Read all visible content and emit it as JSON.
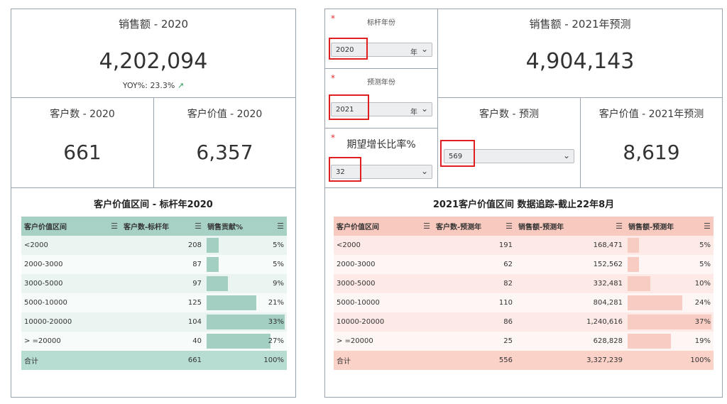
{
  "left": {
    "kpi_sales": {
      "title": "销售额 - 2020",
      "value": "4,202,094",
      "yoy_label": "YOY%:",
      "yoy_value": "23.3%",
      "trend_icon": "trend-up-icon"
    },
    "kpi_customers": {
      "title": "客户数 - 2020",
      "value": "661"
    },
    "kpi_value": {
      "title": "客户价值 - 2020",
      "value": "6,357"
    },
    "table": {
      "title": "客户价值区间 - 标杆年2020",
      "columns": [
        "客户价值区间",
        "客户数-标杆年",
        "销售贡献%"
      ],
      "rows": [
        {
          "range": "<2000",
          "count": "208",
          "share": "5%",
          "share_pct": 5
        },
        {
          "range": "2000-3000",
          "count": "87",
          "share": "5%",
          "share_pct": 5
        },
        {
          "range": "3000-5000",
          "count": "97",
          "share": "9%",
          "share_pct": 9
        },
        {
          "range": "5000-10000",
          "count": "125",
          "share": "21%",
          "share_pct": 21
        },
        {
          "range": "10000-20000",
          "count": "104",
          "share": "33%",
          "share_pct": 33
        },
        {
          "range": "> =20000",
          "count": "40",
          "share": "27%",
          "share_pct": 27
        }
      ],
      "total": {
        "label": "合计",
        "count": "661",
        "share": "100%"
      }
    }
  },
  "controls": {
    "benchmark_year": {
      "label": "标杆年份",
      "value": "2020",
      "unit": "年"
    },
    "forecast_year": {
      "label": "预测年份",
      "value": "2021",
      "unit": "年"
    },
    "growth_rate": {
      "label": "期望增长比率%",
      "value": "32"
    }
  },
  "right": {
    "kpi_sales": {
      "title": "销售额 - 2021年预测",
      "value": "4,904,143"
    },
    "kpi_customers": {
      "title": "客户数 - 预测",
      "input_value": "569"
    },
    "kpi_value": {
      "title": "客户价值 - 2021年预测",
      "value": "8,619"
    },
    "table": {
      "title": "2021客户价值区间  数据追踪-截止22年8月",
      "columns": [
        "客户价值区间",
        "客户数-预测年",
        "销售额-预测年",
        "销售额-预测年"
      ],
      "rows": [
        {
          "range": "<2000",
          "count": "191",
          "sales": "168,471",
          "share": "5%",
          "share_pct": 5
        },
        {
          "range": "2000-3000",
          "count": "62",
          "sales": "152,562",
          "share": "5%",
          "share_pct": 5
        },
        {
          "range": "3000-5000",
          "count": "82",
          "sales": "332,481",
          "share": "10%",
          "share_pct": 10
        },
        {
          "range": "5000-10000",
          "count": "110",
          "sales": "804,281",
          "share": "24%",
          "share_pct": 24
        },
        {
          "range": "10000-20000",
          "count": "86",
          "sales": "1,240,616",
          "share": "37%",
          "share_pct": 37
        },
        {
          "range": "> =20000",
          "count": "25",
          "sales": "628,828",
          "share": "19%",
          "share_pct": 19
        }
      ],
      "total": {
        "label": "合计",
        "count": "556",
        "sales": "3,327,239",
        "share": "100%"
      }
    }
  },
  "icons": {
    "sort": "sort-icon",
    "chevron": "chevron-down-icon"
  },
  "colors": {
    "highlight_box": "#e02020",
    "green_header": "#a8d1c6",
    "red_header": "#f8c9bf",
    "trend_up": "#2e9a5a",
    "required_star": "#e03030"
  }
}
